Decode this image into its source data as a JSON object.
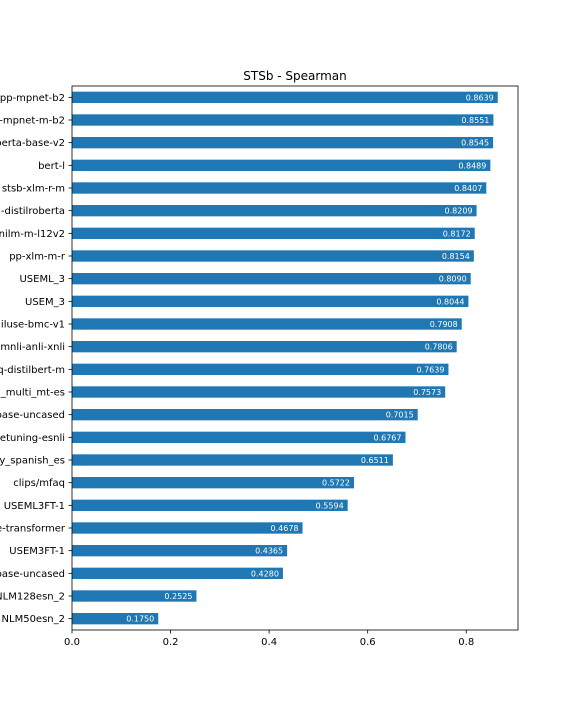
{
  "chart_data": {
    "type": "bar",
    "orientation": "horizontal",
    "title": "STSb - Spearman",
    "xlabel": "",
    "ylabel": "",
    "xlim": [
      0,
      0.905
    ],
    "xticks": [
      0.0,
      0.2,
      0.4,
      0.6,
      0.8
    ],
    "xtick_labels": [
      "0.0",
      "0.2",
      "0.4",
      "0.6",
      "0.8"
    ],
    "grid": false,
    "legend": "none",
    "bar_color": "#1f77b4",
    "categories": [
      "pp-mpnet-b2",
      "-mpnet-m-b2",
      "oberta-base-v2",
      "bert-l",
      "stsb-xlm-r-m",
      "-distilroberta",
      "nilm-m-l12v2",
      "pp-xlm-m-r",
      "USEML_3",
      "USEM_3",
      "iluse-bmc-v1",
      "mnli-anli-xnli",
      "q-distilbert-m",
      "_multi_mt-es",
      "base-uncased",
      "etuning-esnli",
      "y_spanish_es",
      "clips/mfaq",
      "USEML3FT-1",
      "e-transformer",
      "USEM3FT-1",
      "base-uncased",
      "NLM128esn_2",
      "NLM50esn_2"
    ],
    "values": [
      0.8639,
      0.8551,
      0.8545,
      0.8489,
      0.8407,
      0.8209,
      0.8172,
      0.8154,
      0.809,
      0.8044,
      0.7908,
      0.7806,
      0.7639,
      0.7573,
      0.7015,
      0.6767,
      0.6511,
      0.5722,
      0.5594,
      0.4678,
      0.4365,
      0.428,
      0.2525,
      0.175
    ],
    "value_labels": [
      "0.8639",
      "0.8551",
      "0.8545",
      "0.8489",
      "0.8407",
      "0.8209",
      "0.8172",
      "0.8154",
      "0.8090",
      "0.8044",
      "0.7908",
      "0.7806",
      "0.7639",
      "0.7573",
      "0.7015",
      "0.6767",
      "0.6511",
      "0.5722",
      "0.5594",
      "0.4678",
      "0.4365",
      "0.4280",
      "0.2525",
      "0.1750"
    ]
  }
}
